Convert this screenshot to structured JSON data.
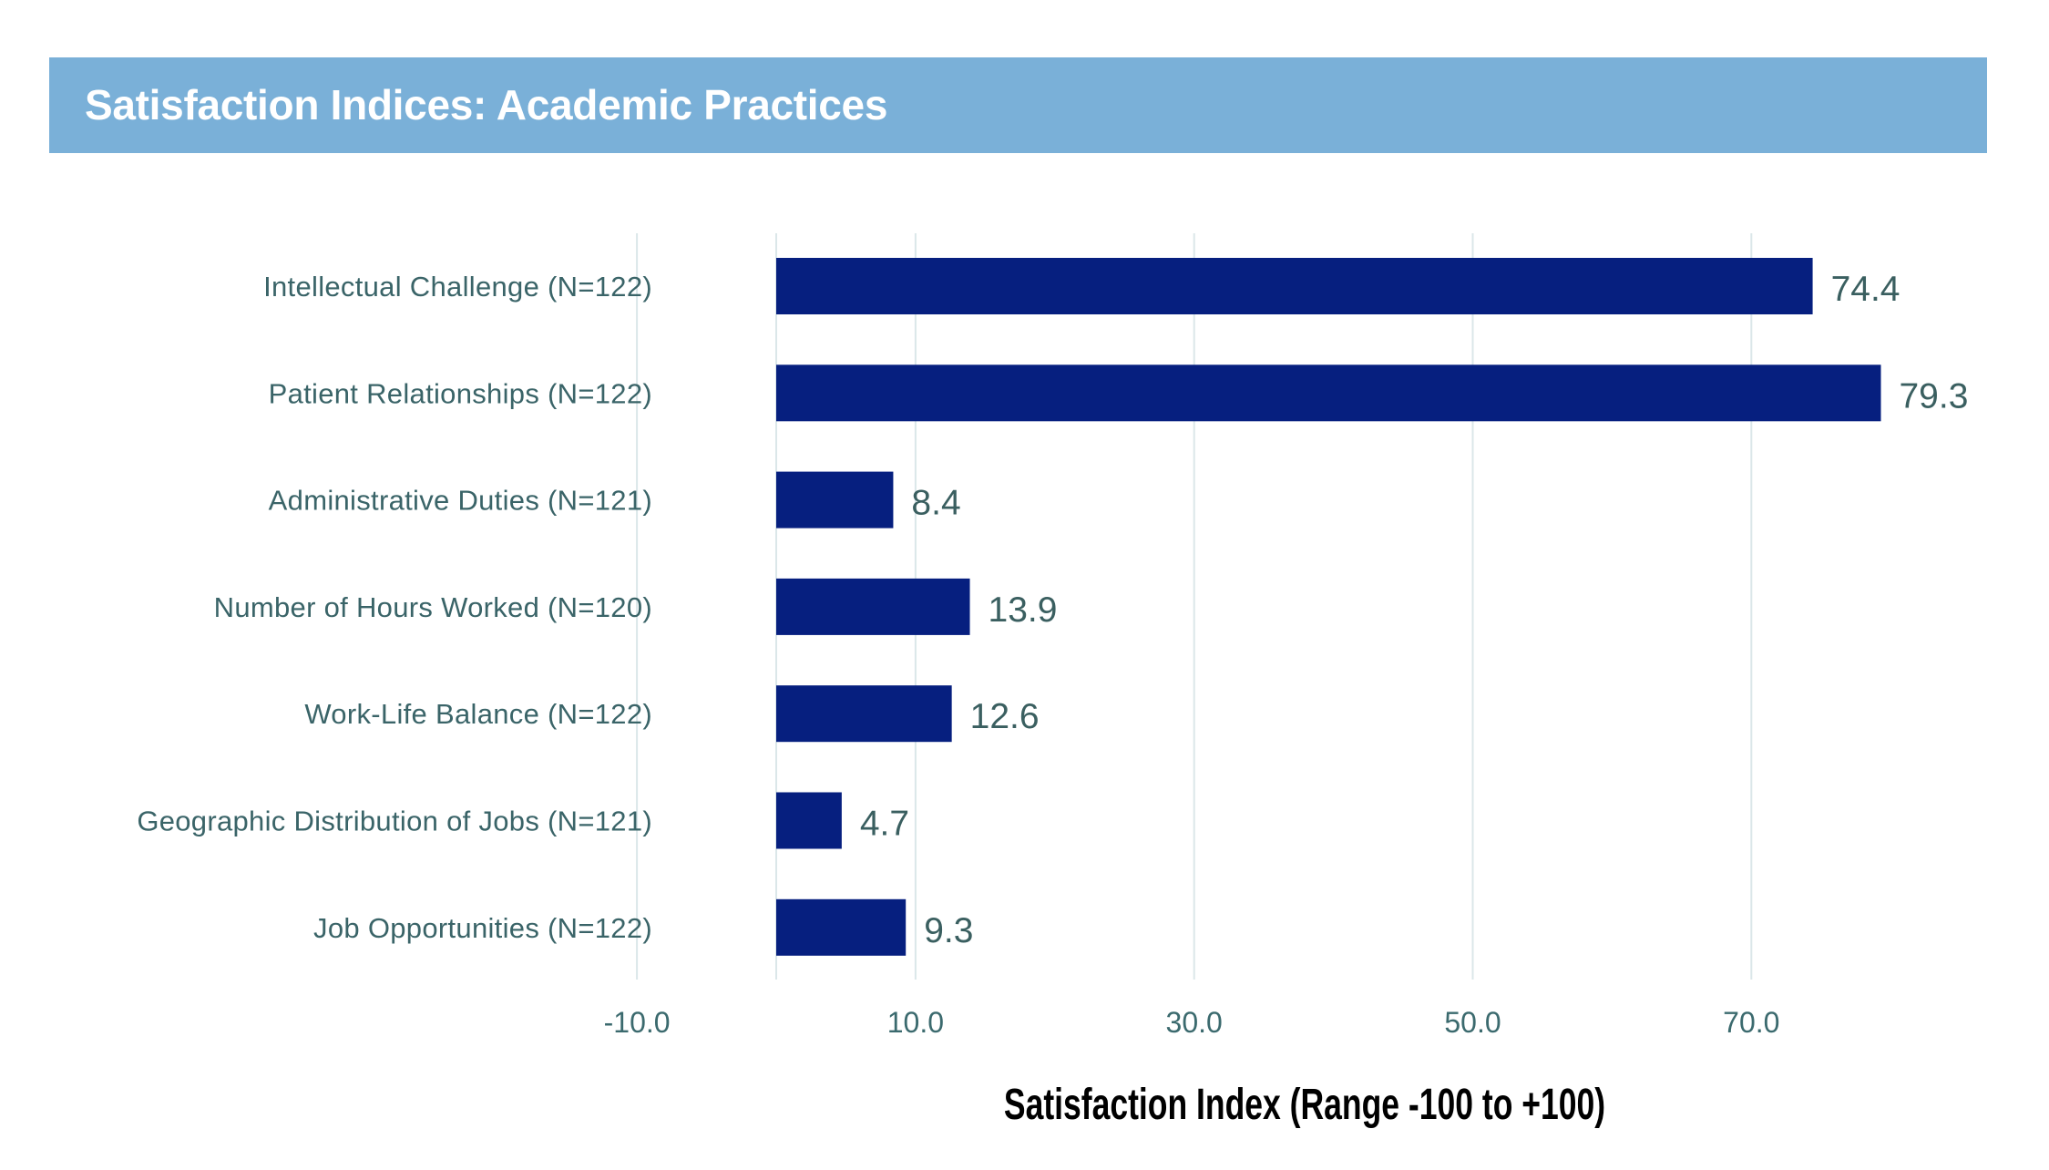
{
  "header": {
    "title": "Satisfaction Indices: Academic Practices"
  },
  "colors": {
    "banner": "#7ab0d8",
    "bar": "#061f7f",
    "label_text": "#3a6468",
    "gridline": "#dbe7e9"
  },
  "chart_data": {
    "type": "bar",
    "orientation": "horizontal",
    "title": "Satisfaction Indices: Academic Practices",
    "xlabel": "Satisfaction Index (Range -100 to +100)",
    "ylabel": "",
    "categories": [
      "Intellectual Challenge (N=122)",
      "Patient Relationships (N=122)",
      "Administrative Duties (N=121)",
      "Number of Hours Worked (N=120)",
      "Work-Life Balance (N=122)",
      "Geographic Distribution of Jobs (N=121)",
      "Job Opportunities (N=122)"
    ],
    "values": [
      74.4,
      79.3,
      8.4,
      13.9,
      12.6,
      4.7,
      9.3
    ],
    "value_labels": [
      "74.4",
      "79.3",
      "8.4",
      "13.9",
      "12.6",
      "4.7",
      "9.3"
    ],
    "xticks": [
      -10,
      10,
      30,
      50,
      70
    ],
    "xtick_labels": [
      "-10.0",
      "10.0",
      "30.0",
      "50.0",
      "70.0"
    ],
    "gridlines_at": [
      -10,
      0,
      10,
      30,
      50,
      70
    ],
    "xlim": [
      -10,
      80
    ],
    "grid": true,
    "legend": "none"
  }
}
